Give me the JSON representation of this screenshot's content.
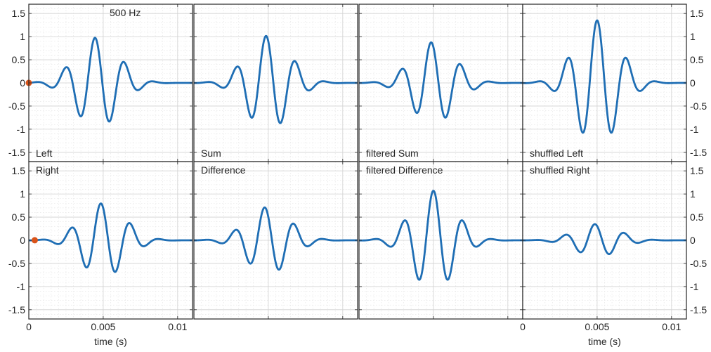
{
  "chart_data": {
    "type": "line",
    "annotation": "500 Hz",
    "xlabel": "time (s)",
    "ylabel": "",
    "xlim": [
      0,
      0.011
    ],
    "ylim": [
      -1.7,
      1.7
    ],
    "xticks": [
      0,
      0.005,
      0.01
    ],
    "xtick_labels": [
      "0",
      "0.005",
      "0.01"
    ],
    "yticks": [
      1.5,
      1,
      0.5,
      0,
      -0.5,
      -1,
      -1.5
    ],
    "ytick_labels": [
      "1.5",
      "1",
      "0.5",
      "0",
      "-0.5",
      "-1",
      "-1.5"
    ],
    "grid": true,
    "minor_grid": true,
    "line_color": "#1f6eb4",
    "marker_color": "#d95319",
    "panels": [
      {
        "label": "Left",
        "label_position": "bottom",
        "amp": 0.98,
        "phase": 0.5,
        "peak_t": 0.0046,
        "marker_t": 0.0
      },
      {
        "label": "Sum",
        "label_position": "bottom",
        "amp": 1.02,
        "phase": 0.5,
        "peak_t": 0.005,
        "marker_t": null
      },
      {
        "label": "filtered Sum",
        "label_position": "bottom",
        "amp": 0.88,
        "phase": 0.5,
        "peak_t": 0.005,
        "marker_t": null
      },
      {
        "label": "shuffled Left",
        "label_position": "bottom",
        "amp": 1.35,
        "phase": 0.0,
        "peak_t": 0.005,
        "marker_t": null
      },
      {
        "label": "Right",
        "label_position": "top",
        "amp": 0.8,
        "phase": 0.52,
        "peak_t": 0.005,
        "marker_t": 0.0004
      },
      {
        "label": "Difference",
        "label_position": "top",
        "amp": 0.72,
        "phase": 0.8,
        "peak_t": 0.005,
        "marker_t": null
      },
      {
        "label": "filtered Difference",
        "label_position": "top",
        "amp": 1.07,
        "phase": 0.0,
        "peak_t": 0.005,
        "marker_t": null
      },
      {
        "label": "shuffled Right",
        "label_position": "top",
        "amp": 0.35,
        "phase": 0.5,
        "peak_t": 0.005,
        "marker_t": null
      }
    ]
  }
}
